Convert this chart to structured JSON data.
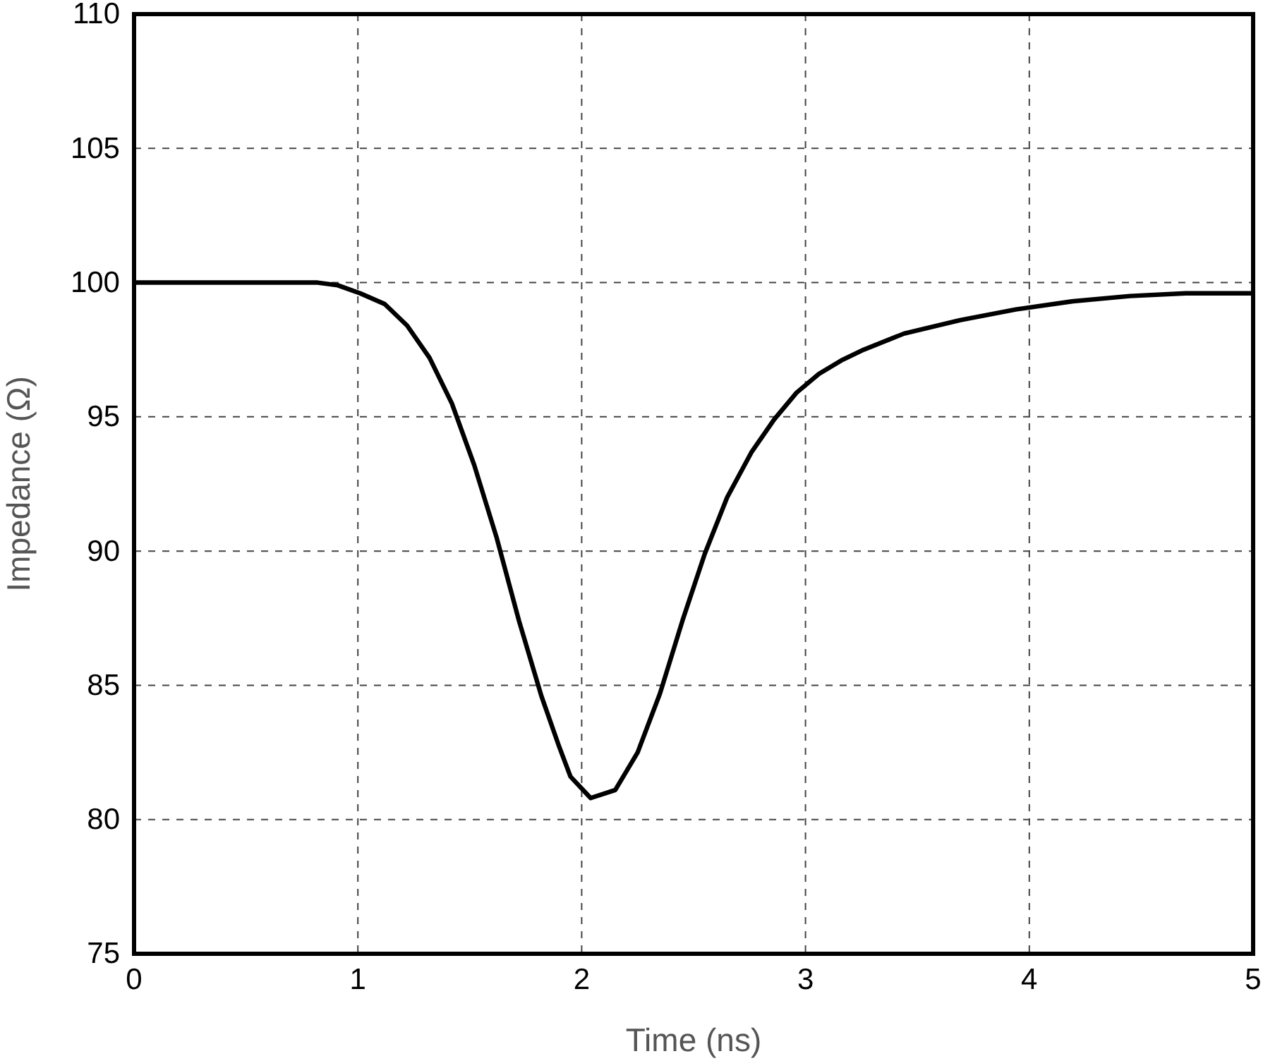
{
  "chart_data": {
    "type": "line",
    "xlabel": "Time (ns)",
    "ylabel": "Impedance (Ω)",
    "xlim": [
      0,
      5
    ],
    "xticks": [
      0,
      1,
      2,
      3,
      4,
      5
    ],
    "ylim": [
      75,
      110
    ],
    "yticks": [
      75,
      80,
      85,
      90,
      95,
      100,
      105,
      110
    ],
    "grid": true,
    "line_style": "solid",
    "marker": "none",
    "series": [
      {
        "color": "#000000",
        "x": [
          0,
          0.82,
          0.91,
          1.01,
          1.12,
          1.22,
          1.32,
          1.42,
          1.52,
          1.62,
          1.72,
          1.82,
          1.9,
          1.95,
          2.04,
          2.15,
          2.25,
          2.35,
          2.45,
          2.55,
          2.65,
          2.76,
          2.86,
          2.96,
          3.06,
          3.16,
          3.26,
          3.44,
          3.69,
          3.94,
          4.19,
          4.45,
          4.7,
          5
        ],
        "values": [
          100,
          100,
          99.9,
          99.6,
          99.2,
          98.4,
          97.2,
          95.5,
          93.2,
          90.5,
          87.4,
          84.6,
          82.7,
          81.6,
          80.8,
          81.1,
          82.5,
          84.7,
          87.4,
          89.9,
          92,
          93.7,
          94.9,
          95.9,
          96.6,
          97.1,
          97.5,
          98.1,
          98.6,
          99,
          99.3,
          99.5,
          99.6,
          99.6
        ]
      }
    ]
  }
}
